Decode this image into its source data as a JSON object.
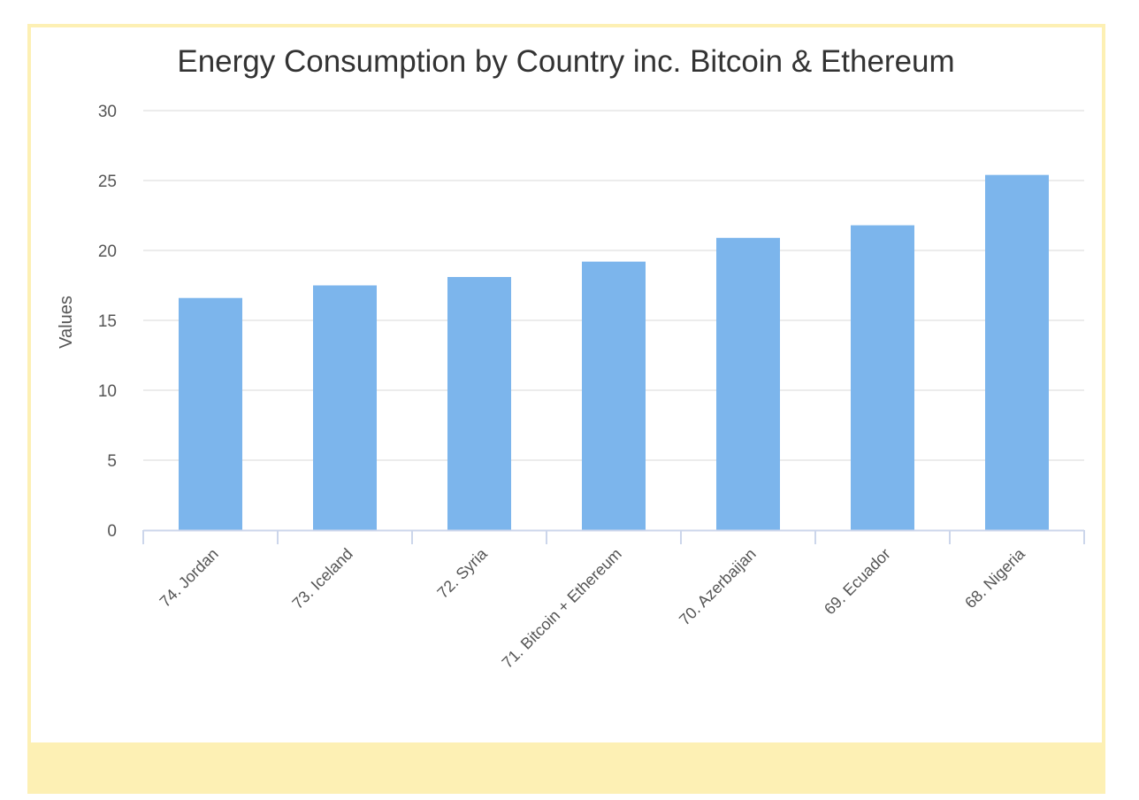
{
  "chart_data": {
    "type": "bar",
    "title": "Energy Consumption by Country inc. Bitcoin & Ethereum",
    "xlabel": "",
    "ylabel": "Values",
    "categories": [
      "74. Jordan",
      "73. Iceland",
      "72. Syria",
      "71. Bitcoin + Ethereum",
      "70. Azerbaijan",
      "69. Ecuador",
      "68. Nigeria"
    ],
    "values": [
      16.6,
      17.5,
      18.1,
      19.2,
      20.9,
      21.8,
      25.4
    ],
    "ylim": [
      0,
      30
    ],
    "yticks": [
      "0",
      "5",
      "10",
      "15",
      "20",
      "25",
      "30"
    ],
    "grid": true,
    "legend": "none",
    "colors": {
      "bar": "#7cb5ec",
      "grid": "#e6e6e6",
      "axis": "#ccd6eb",
      "frame": "#fdf0b4"
    }
  }
}
